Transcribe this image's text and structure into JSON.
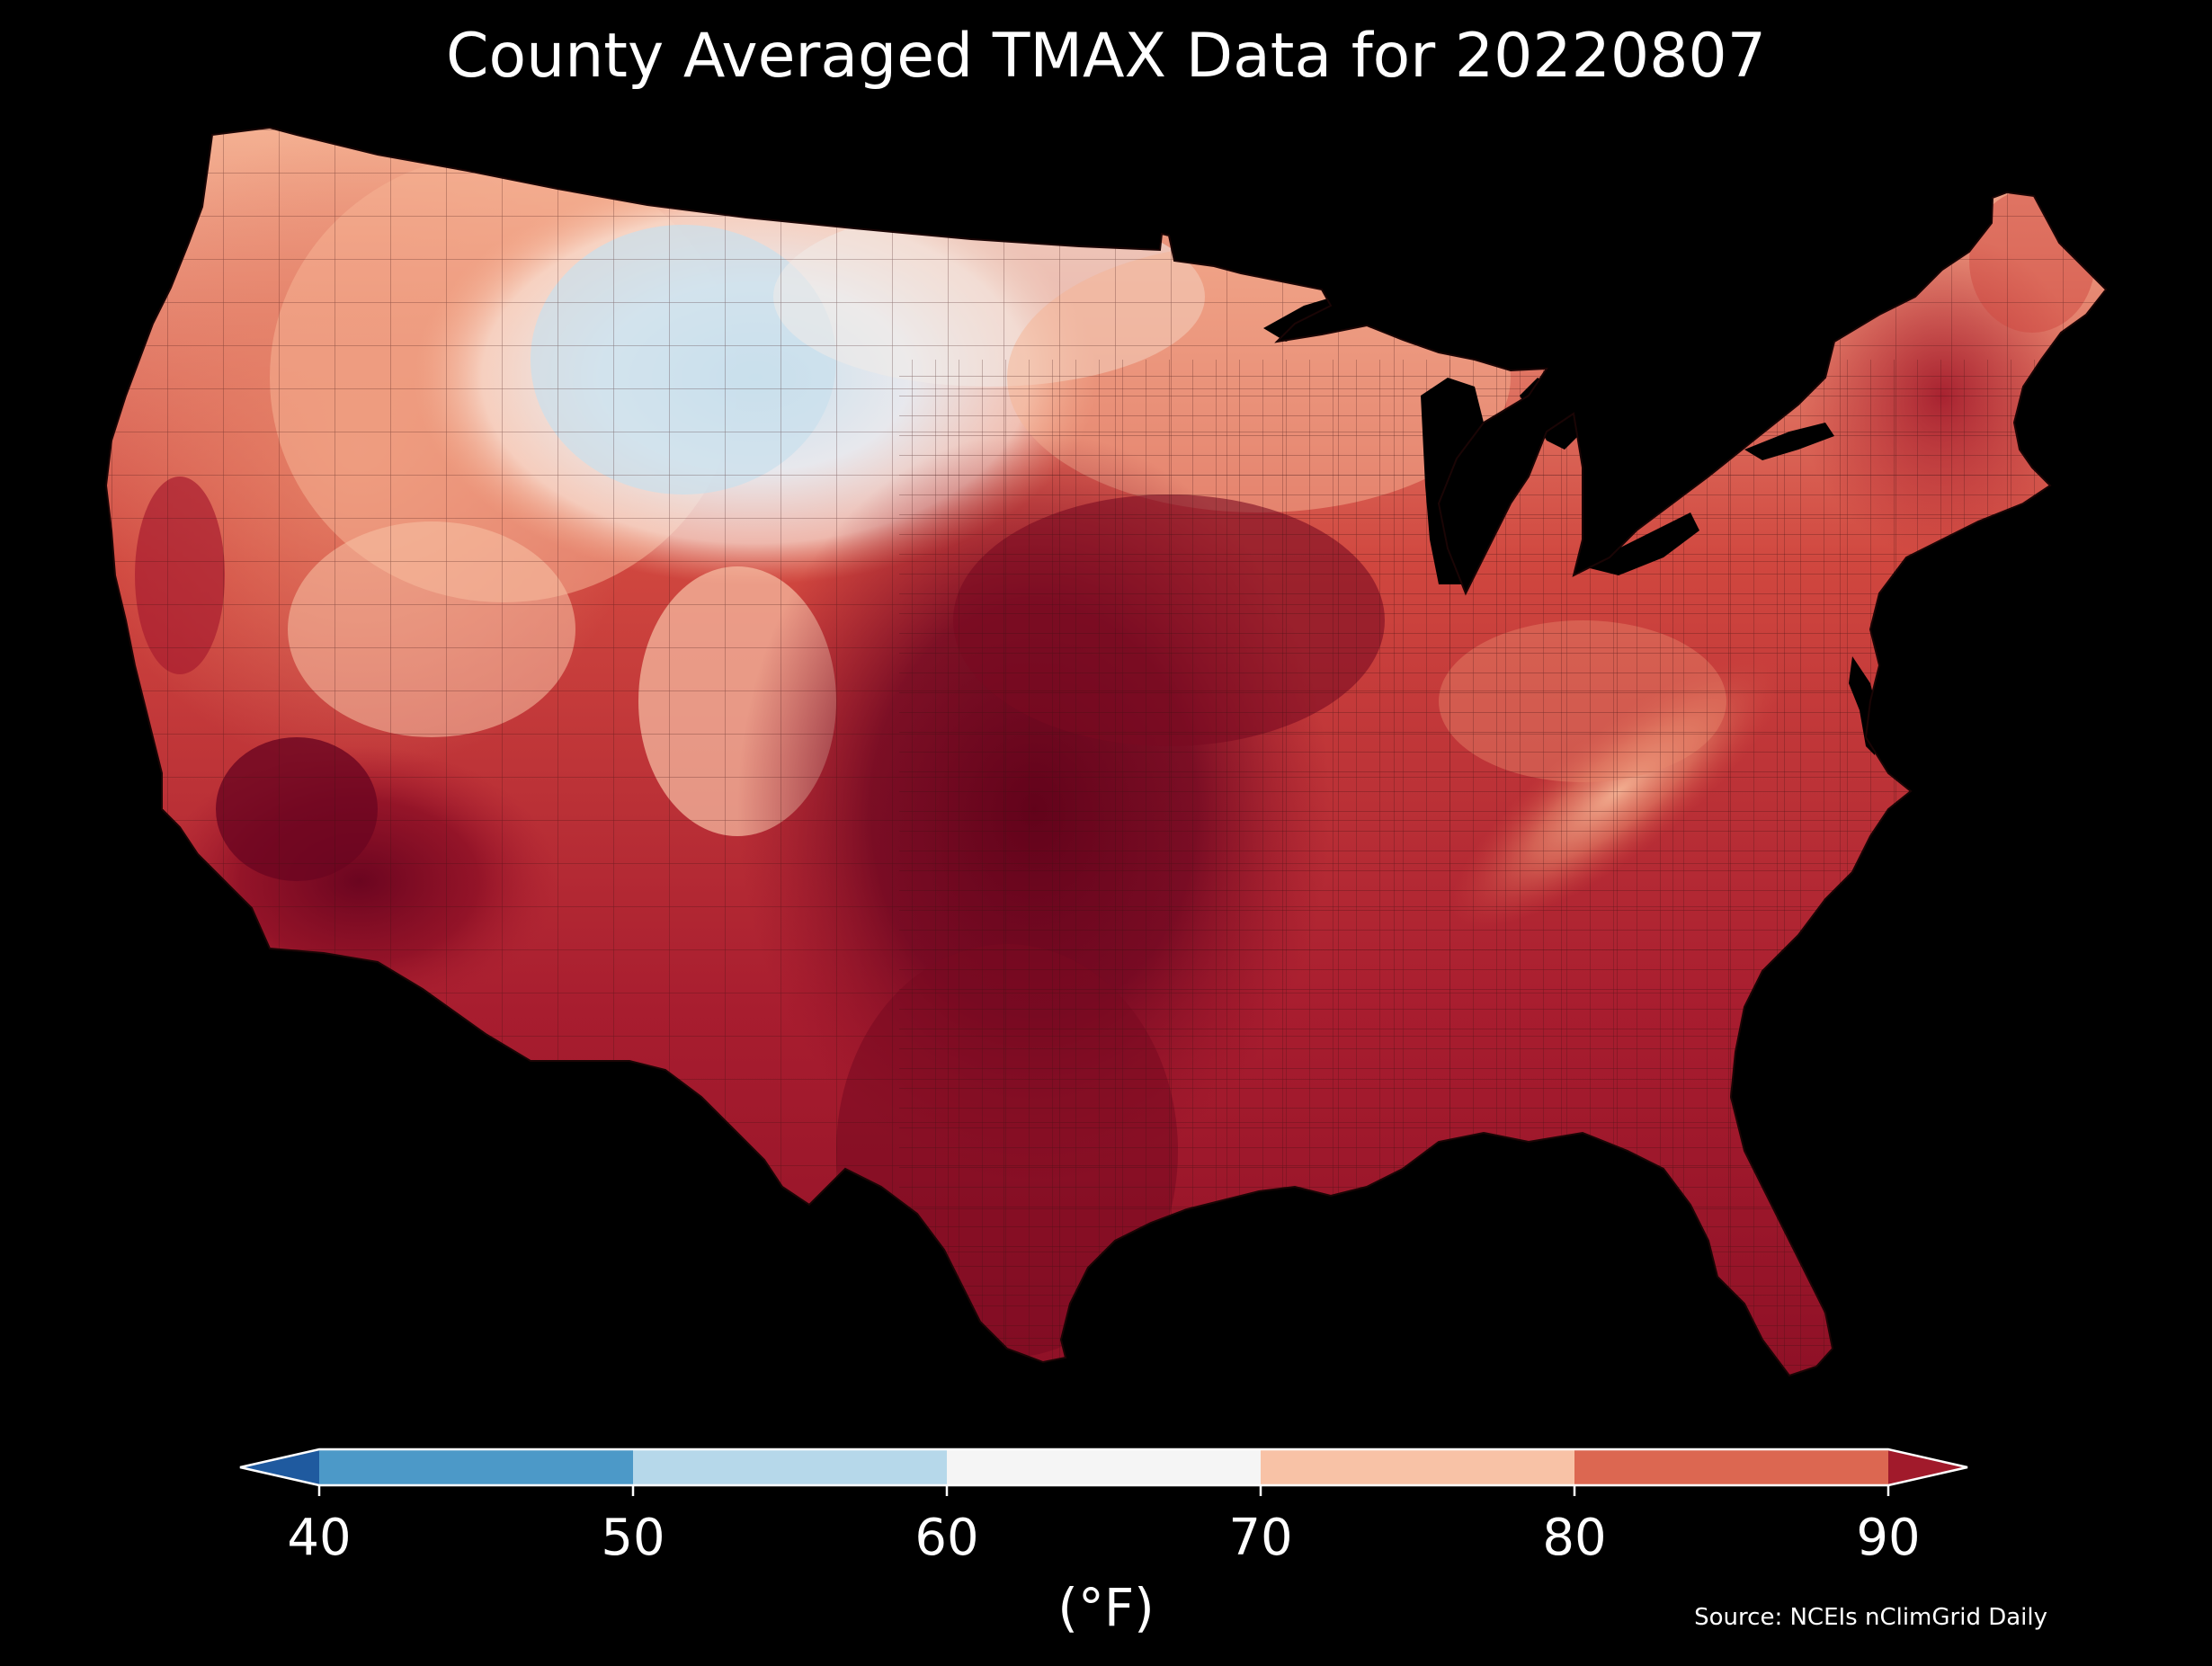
{
  "map": {
    "title": "County Averaged TMAX Data for 20220807",
    "region": "Contiguous United States (county level)",
    "variable": "TMAX",
    "date": "20220807",
    "source_note": "Source: NCEIs nClimGrid Daily"
  },
  "colorbar": {
    "units_label": "(°F)",
    "ticks": [
      "40",
      "50",
      "60",
      "70",
      "80",
      "90"
    ],
    "bins": [
      {
        "range": "<40",
        "color": "#1f5a9f"
      },
      {
        "range": "40-50",
        "color": "#4c99c8"
      },
      {
        "range": "50-60",
        "color": "#b6d8ea"
      },
      {
        "range": "60-70",
        "color": "#f5f5f5"
      },
      {
        "range": "70-80",
        "color": "#f8c2a6"
      },
      {
        "range": "80-90",
        "color": "#dc6751"
      },
      {
        "range": ">90",
        "color": "#a11a2b"
      }
    ],
    "extend": "both"
  },
  "legend_colors": {
    "background": "#000000",
    "text": "#ffffff",
    "county_border": "#3a1a1a"
  },
  "temperature_field": {
    "hottest_region": "Southern Plains (Texas, Oklahoma, Kansas) and desert Southwest",
    "coolest_region": "Northern Rockies / High Plains (Wyoming, Montana, North Dakota)",
    "color_scale": {
      "very_hot": "#6b0520",
      "hot": "#8e1026",
      "warm_hot": "#b52731",
      "warm": "#d0473f",
      "mild_warm": "#e7866a",
      "mild": "#f5b394",
      "neutral": "#fae6da",
      "cool": "#e8eff5",
      "cooler": "#c9dfec"
    }
  }
}
